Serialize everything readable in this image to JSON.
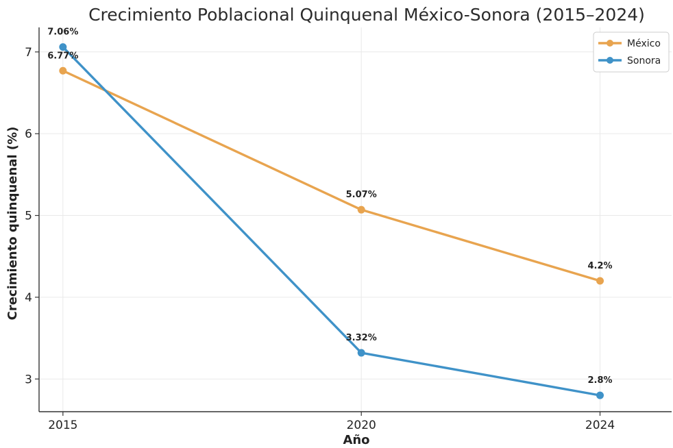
{
  "chart_data": {
    "type": "line",
    "title": "Crecimiento Poblacional Quinquenal México-Sonora (2015–2024)",
    "xlabel": "Año",
    "ylabel": "Crecimiento quinquenal (%)",
    "x": [
      2015,
      2020,
      2024
    ],
    "xlim": [
      2014.6,
      2025.2
    ],
    "ylim": [
      2.6,
      7.3
    ],
    "yticks": [
      3,
      4,
      5,
      6,
      7
    ],
    "xticks": [
      2015,
      2020,
      2024
    ],
    "grid": true,
    "legend_position": "top-right",
    "series": [
      {
        "name": "México",
        "color": "#e8a44f",
        "values": [
          6.77,
          5.07,
          4.2
        ],
        "labels": [
          "6.77%",
          "5.07%",
          "4.2%"
        ]
      },
      {
        "name": "Sonora",
        "color": "#3f92c8",
        "values": [
          7.06,
          3.32,
          2.8
        ],
        "labels": [
          "7.06%",
          "3.32%",
          "2.8%"
        ]
      }
    ]
  }
}
